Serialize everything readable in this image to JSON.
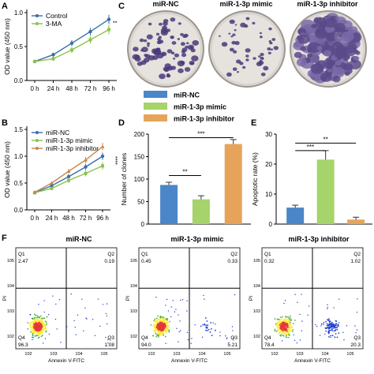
{
  "panels": {
    "A": "A",
    "B": "B",
    "C": "C",
    "D": "D",
    "E": "E",
    "F": "F"
  },
  "colors": {
    "control": "#3a6ea8",
    "treat": "#8bc34a",
    "mimic": "#8bc34a",
    "inhibitor": "#c8864a",
    "nc": "#3a6ea8",
    "bar_nc": "#4a86c8",
    "bar_mimic": "#a6d36a",
    "bar_inhibitor": "#e6a45a"
  },
  "chart_data": [
    {
      "id": "A",
      "type": "line",
      "ylabel": "OD value (450 nm)",
      "categories": [
        "0 h",
        "24 h",
        "48 h",
        "72 h",
        "96 h"
      ],
      "yticks": [
        "0.0",
        "0.5",
        "1.0"
      ],
      "ylim": [
        0.0,
        1.0
      ],
      "series": [
        {
          "name": "Control",
          "values": [
            0.28,
            0.38,
            0.55,
            0.72,
            0.9
          ]
        },
        {
          "name": "3-MA",
          "values": [
            0.28,
            0.32,
            0.45,
            0.6,
            0.75
          ]
        }
      ],
      "annotation": "**"
    },
    {
      "id": "B",
      "type": "line",
      "ylabel": "OD value (450 nm)",
      "categories": [
        "0 h",
        "24 h",
        "48 h",
        "72 h",
        "96 h"
      ],
      "yticks": [
        "0.0",
        "0.5",
        "1.0",
        "1.5"
      ],
      "ylim": [
        0.0,
        1.5
      ],
      "series": [
        {
          "name": "miR-NC",
          "values": [
            0.32,
            0.45,
            0.62,
            0.8,
            1.0
          ]
        },
        {
          "name": "miR-1-3p mimic",
          "values": [
            0.32,
            0.4,
            0.55,
            0.68,
            0.82
          ]
        },
        {
          "name": "miR-1-3p inhibitor",
          "values": [
            0.33,
            0.5,
            0.72,
            0.93,
            1.18
          ]
        }
      ],
      "annotation": "****"
    },
    {
      "id": "D",
      "type": "bar",
      "ylabel": "Number of clones",
      "categories": [
        "miR-NC",
        "miR-1-3p mimic",
        "miR-1-3p inhibitor"
      ],
      "values": [
        87,
        55,
        178
      ],
      "errors": [
        6,
        8,
        10
      ],
      "yticks": [
        "0",
        "50",
        "100",
        "150",
        "200"
      ],
      "ylim": [
        0,
        200
      ],
      "significance": [
        "**",
        "***"
      ]
    },
    {
      "id": "E",
      "type": "bar",
      "ylabel": "Apoptotic rate (%)",
      "categories": [
        "miR-NC",
        "miR-1-3p mimic",
        "miR-1-3p inhibitor"
      ],
      "values": [
        5.5,
        21.5,
        1.5
      ],
      "errors": [
        0.8,
        3.0,
        0.8
      ],
      "yticks": [
        "0",
        "10",
        "20",
        "30"
      ],
      "ylim": [
        0,
        30
      ],
      "significance": [
        "**",
        "***"
      ]
    },
    {
      "id": "F",
      "type": "scatter",
      "xlabel": "Annexin V-FITC",
      "ylabel": "PI",
      "plots": [
        {
          "title": "miR-NC",
          "q1": "2.47",
          "q2": "0.19",
          "q3": "1.08",
          "q4": "96.3"
        },
        {
          "title": "miR-1-3p mimic",
          "q1": "0.45",
          "q2": "0.33",
          "q3": "5.21",
          "q4": "94.0"
        },
        {
          "title": "miR-1-3p inhibitor",
          "q1": "0.32",
          "q2": "1.02",
          "q3": "20.3",
          "q4": "78.4"
        }
      ],
      "quadrant_labels": [
        "Q1",
        "Q2",
        "Q3",
        "Q4"
      ]
    }
  ],
  "legend_bars": [
    "miR-NC",
    "miR-1-3p mimic",
    "miR-1-3p inhibitor"
  ],
  "plates": [
    "miR-NC",
    "miR-1-3p mimic",
    "miR-1-3p inhibitor"
  ]
}
